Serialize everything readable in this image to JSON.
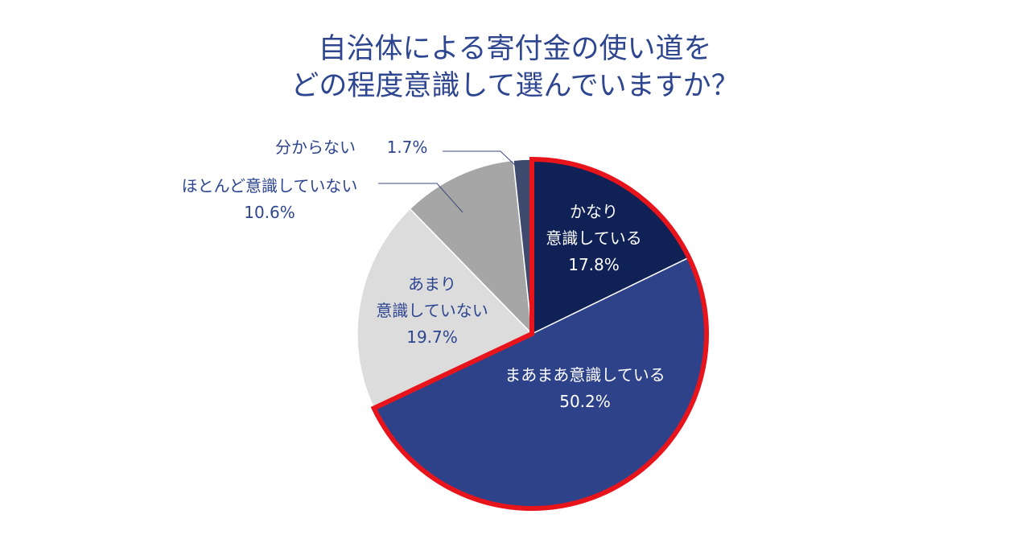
{
  "title": {
    "line1": "自治体による寄付金の使い道を",
    "line2": "どの程度意識して選んでいますか？"
  },
  "colors": {
    "title": "#2e4590",
    "highlight_border": "#e8141c",
    "leader_line": "#3c4a7a"
  },
  "chart_data": {
    "type": "pie",
    "title": "自治体による寄付金の使い道をどの程度意識して選んでいますか？",
    "start": "12 o'clock, clockwise",
    "highlighted_series": [
      "かなり意識している",
      "まあまあ意識している"
    ],
    "slices": [
      {
        "label_lines": [
          "かなり",
          "意識している"
        ],
        "label": "かなり意識している",
        "value": 17.8,
        "value_text": "17.8%",
        "color": "#0f2155",
        "text_color": "#ffffff"
      },
      {
        "label_lines": [
          "まあまあ意識している"
        ],
        "label": "まあまあ意識している",
        "value": 50.2,
        "value_text": "50.2%",
        "color": "#2e428a",
        "text_color": "#ffffff"
      },
      {
        "label_lines": [
          "あまり",
          "意識していない"
        ],
        "label": "あまり意識していない",
        "value": 19.7,
        "value_text": "19.7%",
        "color": "#dcdcdc",
        "text_color": "#2e4590"
      },
      {
        "label_lines": [
          "ほとんど意識していない"
        ],
        "label": "ほとんど意識していない",
        "value": 10.6,
        "value_text": "10.6%",
        "color": "#a6a6a6",
        "text_color": "#2e4590"
      },
      {
        "label_lines": [
          "分からない"
        ],
        "label": "分からない",
        "value": 1.7,
        "value_text": "1.7%",
        "color": "#3f4a6f",
        "text_color": "#2e4590"
      }
    ]
  }
}
